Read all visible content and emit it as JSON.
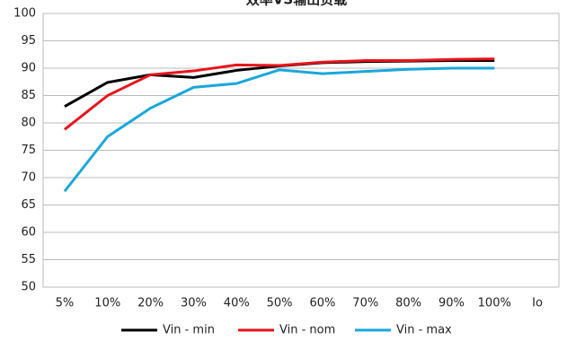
{
  "chart_data": {
    "type": "line",
    "title": "效率VS输出负载",
    "categories": [
      "5%",
      "10%",
      "20%",
      "30%",
      "40%",
      "50%",
      "60%",
      "70%",
      "80%",
      "90%",
      "100%",
      "Io"
    ],
    "series": [
      {
        "name": "Vin - min",
        "color": "#000000",
        "values": [
          83,
          87.4,
          88.8,
          88.3,
          89.6,
          90.4,
          91,
          91.2,
          91.3,
          91.4,
          91.4,
          null
        ]
      },
      {
        "name": "Vin - nom",
        "color": "#e8141a",
        "values": [
          78.8,
          85,
          88.8,
          89.5,
          90.6,
          90.5,
          91.1,
          91.4,
          91.4,
          91.6,
          91.7,
          null
        ]
      },
      {
        "name": "Vin - max",
        "color": "#1aa7dc",
        "values": [
          67.5,
          77.5,
          82.7,
          86.5,
          87.2,
          89.7,
          89,
          89.4,
          89.8,
          90,
          90,
          null
        ]
      }
    ],
    "ylim": [
      50,
      100
    ],
    "yticks": [
      50,
      55,
      60,
      65,
      70,
      75,
      80,
      85,
      90,
      95,
      100
    ],
    "grid": true,
    "legend": "bottom"
  }
}
